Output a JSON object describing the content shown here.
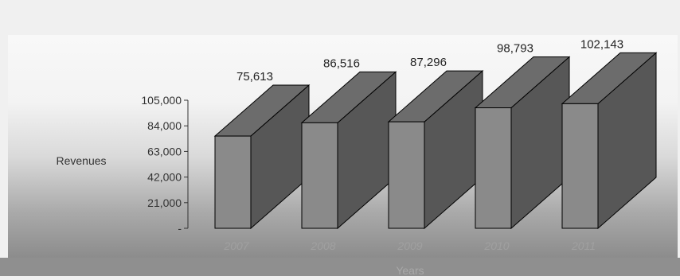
{
  "chart_data": {
    "type": "bar",
    "title": "",
    "xlabel": "Years",
    "ylabel": "Revenues",
    "categories": [
      "2007",
      "2008",
      "2009",
      "2010",
      "2011"
    ],
    "values": [
      75613,
      86516,
      87296,
      98793,
      102143
    ],
    "data_labels": [
      "75,613",
      "86,516",
      "87,296",
      "98,793",
      "102,143"
    ],
    "ylim": [
      0,
      105000
    ],
    "yticks": [
      0,
      21000,
      42000,
      63000,
      84000,
      105000
    ],
    "ytick_labels": [
      "-",
      "21,000",
      "42,000",
      "63,000",
      "84,000",
      "105,000"
    ],
    "grid": false,
    "legend": "none",
    "style": "3d-column",
    "colors": {
      "bar_front": "#8a8a8a",
      "bar_side": "#575757",
      "bar_top": "#6c6c6c",
      "bar_stroke": "#000000"
    }
  }
}
